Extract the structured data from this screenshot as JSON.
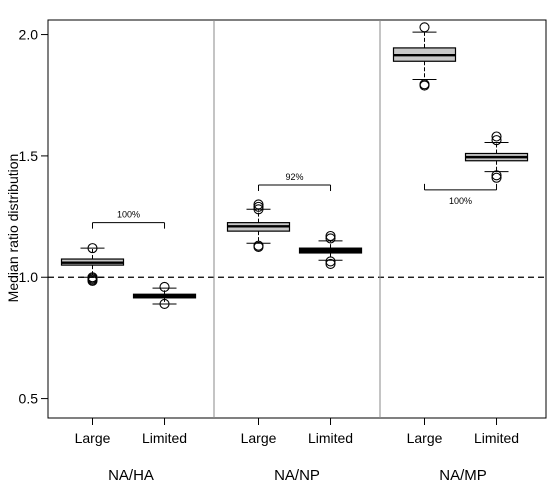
{
  "chart_data": {
    "type": "box",
    "ylabel": "Median ratio distribution",
    "ylim": [
      0.42,
      2.06
    ],
    "y_ticks": [
      0.5,
      1.0,
      1.5,
      2.0
    ],
    "y_tick_labels": [
      "0.5",
      "1.0",
      "1.5",
      "2.0"
    ],
    "reference_line": 1.0,
    "groups": [
      {
        "name": "NA/HA",
        "boxes": [
          {
            "category": "Large",
            "fill": "#c8c8c8",
            "q1": 1.05,
            "median": 1.06,
            "q3": 1.075,
            "whisker_low": 1.0,
            "whisker_high": 1.12,
            "outliers": [
              1.12,
              0.985,
              0.99,
              0.995,
              1.0
            ]
          },
          {
            "category": "Limited",
            "fill": "#000000",
            "q1": 0.915,
            "median": 0.922,
            "q3": 0.93,
            "whisker_low": 0.89,
            "whisker_high": 0.955,
            "outliers": [
              0.96,
              0.89
            ]
          }
        ],
        "annotation": {
          "text": "100%",
          "y": 1.225
        }
      },
      {
        "name": "NA/NP",
        "boxes": [
          {
            "category": "Large",
            "fill": "#c8c8c8",
            "q1": 1.19,
            "median": 1.21,
            "q3": 1.225,
            "whisker_low": 1.14,
            "whisker_high": 1.28,
            "outliers": [
              1.29,
              1.3,
              1.28,
              1.13,
              1.125
            ]
          },
          {
            "category": "Limited",
            "fill": "#000000",
            "q1": 1.1,
            "median": 1.11,
            "q3": 1.12,
            "whisker_low": 1.07,
            "whisker_high": 1.15,
            "outliers": [
              1.17,
              1.16,
              1.065,
              1.055
            ]
          }
        ],
        "annotation": {
          "text": "92%",
          "y": 1.38
        }
      },
      {
        "name": "NA/MP",
        "boxes": [
          {
            "category": "Large",
            "fill": "#c8c8c8",
            "q1": 1.89,
            "median": 1.915,
            "q3": 1.945,
            "whisker_low": 1.815,
            "whisker_high": 2.01,
            "outliers": [
              2.03,
              1.79,
              1.795
            ]
          },
          {
            "category": "Limited",
            "fill": "#c8c8c8",
            "q1": 1.48,
            "median": 1.495,
            "q3": 1.51,
            "whisker_low": 1.435,
            "whisker_high": 1.555,
            "outliers": [
              1.58,
              1.565,
              1.42,
              1.41
            ]
          }
        ],
        "annotation": {
          "text": "100%",
          "y": 1.36
        }
      }
    ]
  }
}
